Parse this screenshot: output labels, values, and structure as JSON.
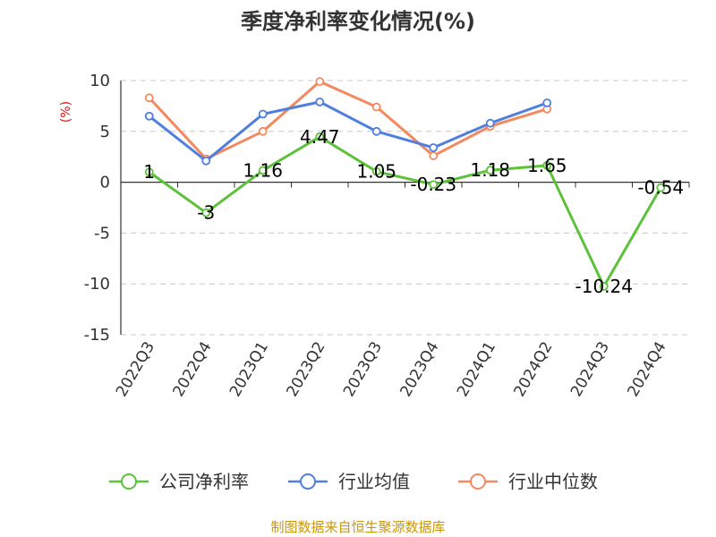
{
  "chart_data": {
    "type": "line",
    "title": "季度净利率变化情况(%)",
    "ylabel": "(%)",
    "ylim": [
      -15,
      10
    ],
    "yticks": [
      10,
      5,
      0,
      -5,
      -10,
      -15
    ],
    "categories": [
      "2022Q3",
      "2022Q4",
      "2023Q1",
      "2023Q2",
      "2023Q3",
      "2023Q4",
      "2024Q1",
      "2024Q2",
      "2024Q3",
      "2024Q4"
    ],
    "grid": true,
    "legend_position": "bottom",
    "series": [
      {
        "name": "公司净利率",
        "color": "#5cc23a",
        "values": [
          1,
          -3,
          1.16,
          4.47,
          1.05,
          -0.23,
          1.18,
          1.65,
          -10.24,
          -0.54
        ],
        "data_labels": [
          "1",
          "-3",
          "1.16",
          "4.47",
          "1.05",
          "-0.23",
          "1.18",
          "1.65",
          "-10.24",
          "-0.54"
        ]
      },
      {
        "name": "行业均值",
        "color": "#4f7fde",
        "values": [
          6.5,
          2.1,
          6.7,
          7.9,
          5.0,
          3.4,
          5.8,
          7.8,
          null,
          null
        ]
      },
      {
        "name": "行业中位数",
        "color": "#f4895f",
        "values": [
          8.3,
          2.3,
          5.0,
          9.9,
          7.4,
          2.6,
          5.5,
          7.2,
          null,
          null
        ]
      }
    ],
    "source": "制图数据来自恒生聚源数据库"
  }
}
